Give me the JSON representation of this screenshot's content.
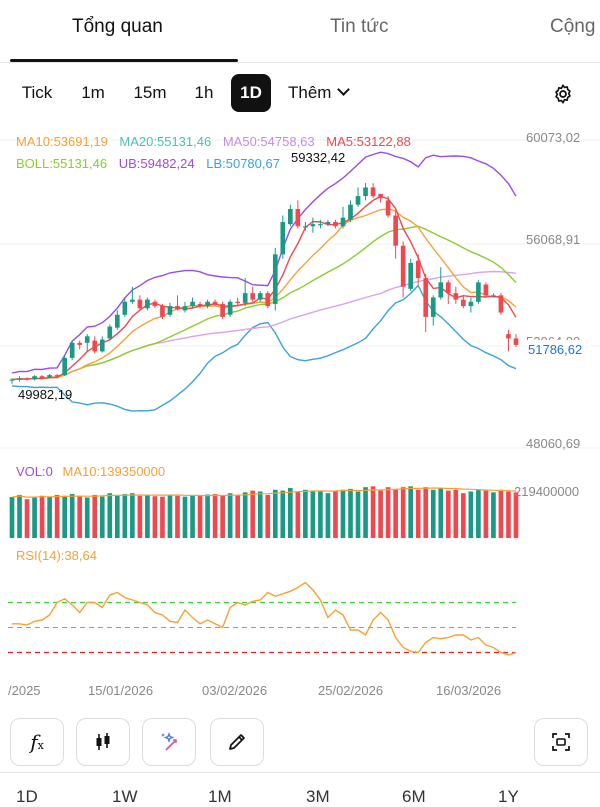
{
  "tabs": [
    "Tổng quan",
    "Tin tức",
    "Cộng"
  ],
  "timeframes": [
    "Tick",
    "1m",
    "15m",
    "1h",
    "1D"
  ],
  "more_label": "Thêm",
  "active_timeframe": "1D",
  "indicators": {
    "ma10": "MA10:53691,19",
    "ma20": "MA20:55131,46",
    "ma50": "MA50:54758,63",
    "ma5": "MA5:53122,88",
    "boll": "BOLL:55131,46",
    "ub": "UB:59482,24",
    "lb": "LB:50780,67"
  },
  "colors": {
    "up": "#1a9a84",
    "down": "#f0484f",
    "ma5": "#f0484f",
    "ma10": "#f5a234",
    "ma20": "#8dcc2c",
    "ma50": "#d8a3f0",
    "ub": "#9b4ae8",
    "lb": "#3aa3d8",
    "rsi": "#f5a234",
    "last_price": "#1a73e8"
  },
  "price_axis": [
    "60073,02",
    "56068,91",
    "52064,80",
    "48060,69"
  ],
  "last_price": "51786,62",
  "high_label": "59332,42",
  "low_label": "49982,19",
  "volume": {
    "title": "VOL:0",
    "ma10": "MA10:139350000",
    "axis_label": "219400000"
  },
  "rsi": {
    "title": "RSI(14):38,64"
  },
  "dates": [
    "/2025",
    "15/01/2026",
    "03/02/2026",
    "25/02/2026",
    "16/03/2026"
  ],
  "toolbar_icons": [
    "fx-icon",
    "candlestick-icon",
    "magic-icon",
    "pencil-icon",
    "screenshot-icon"
  ],
  "ranges": [
    "1D",
    "1W",
    "1M",
    "3M",
    "6M",
    "1Y"
  ],
  "chart_data": {
    "type": "candlestick",
    "ylim": [
      47000,
      61000
    ],
    "candles": [
      [
        49850,
        49900,
        49700,
        49950
      ],
      [
        49900,
        49950,
        49800,
        50050
      ],
      [
        49950,
        49900,
        49850,
        50000
      ],
      [
        49900,
        50050,
        49850,
        50100
      ],
      [
        50050,
        49950,
        49900,
        50100
      ],
      [
        50000,
        50100,
        49950,
        50150
      ],
      [
        50100,
        50050,
        49950,
        50150
      ],
      [
        50100,
        50900,
        50050,
        51000
      ],
      [
        50900,
        51600,
        50800,
        51700
      ],
      [
        51600,
        51500,
        51300,
        51700
      ],
      [
        51600,
        51900,
        51200,
        52000
      ],
      [
        51700,
        51200,
        51100,
        51900
      ],
      [
        51200,
        51750,
        51150,
        51900
      ],
      [
        51800,
        52350,
        51700,
        52450
      ],
      [
        52300,
        52900,
        52200,
        53100
      ],
      [
        52900,
        53500,
        52800,
        53700
      ],
      [
        53500,
        53600,
        53400,
        54200
      ],
      [
        53600,
        53200,
        53100,
        53800
      ],
      [
        53200,
        53600,
        53100,
        53700
      ],
      [
        53500,
        53300,
        53200,
        53600
      ],
      [
        53300,
        52800,
        52700,
        53400
      ],
      [
        52900,
        53300,
        52800,
        53450
      ],
      [
        53300,
        53150,
        53100,
        53800
      ],
      [
        53100,
        53300,
        53000,
        53500
      ],
      [
        53300,
        53500,
        53200,
        53700
      ],
      [
        53400,
        53300,
        53200,
        53500
      ],
      [
        53300,
        53500,
        53200,
        53600
      ],
      [
        53500,
        53400,
        53300,
        53600
      ],
      [
        53400,
        52800,
        52700,
        53500
      ],
      [
        52900,
        53500,
        52800,
        53600
      ],
      [
        53500,
        53450,
        53300,
        53700
      ],
      [
        53450,
        53900,
        53300,
        54600
      ],
      [
        53900,
        53600,
        53500,
        54200
      ],
      [
        53600,
        53900,
        53500,
        54000
      ],
      [
        53900,
        53300,
        53200,
        54000
      ],
      [
        53400,
        55700,
        53100,
        56000
      ],
      [
        55700,
        57200,
        55500,
        57500
      ],
      [
        57100,
        57800,
        57000,
        58000
      ],
      [
        57800,
        57000,
        56900,
        58200
      ],
      [
        57000,
        57000,
        56800,
        57200
      ],
      [
        57000,
        57100,
        56700,
        57400
      ],
      [
        57100,
        57100,
        56900,
        57300
      ],
      [
        57100,
        57200,
        57000,
        57300
      ],
      [
        57200,
        57000,
        56900,
        57300
      ],
      [
        57000,
        57400,
        56900,
        57900
      ],
      [
        57300,
        58000,
        57200,
        58200
      ],
      [
        58000,
        58400,
        57900,
        58800
      ],
      [
        58400,
        58800,
        58200,
        59000
      ],
      [
        58800,
        58400,
        58300,
        59000
      ],
      [
        58500,
        58300,
        58100,
        58500
      ],
      [
        58200,
        57500,
        57400,
        58400
      ],
      [
        57500,
        56100,
        55500,
        57700
      ],
      [
        56100,
        54200,
        53700,
        56300
      ],
      [
        54100,
        55300,
        54000,
        55500
      ],
      [
        55400,
        54600,
        54300,
        55700
      ],
      [
        54600,
        52800,
        52100,
        54800
      ],
      [
        52800,
        53700,
        52400,
        53800
      ],
      [
        53700,
        54400,
        53600,
        55100
      ],
      [
        54400,
        53900,
        53400,
        54500
      ],
      [
        53900,
        53600,
        53400,
        54200
      ],
      [
        53600,
        53300,
        53200,
        53800
      ],
      [
        53300,
        53500,
        53000,
        53700
      ],
      [
        53500,
        54400,
        53400,
        54500
      ],
      [
        54300,
        53800,
        53700,
        54400
      ],
      [
        53800,
        53800,
        53700,
        53900
      ],
      [
        53800,
        53000,
        52900,
        53900
      ],
      [
        52000,
        51800,
        51200,
        52200
      ],
      [
        51800,
        51500,
        51400,
        52000
      ]
    ],
    "volumes": [
      95,
      100,
      90,
      95,
      98,
      96,
      100,
      98,
      102,
      98,
      94,
      100,
      96,
      104,
      100,
      102,
      104,
      98,
      100,
      97,
      96,
      100,
      98,
      96,
      98,
      100,
      101,
      102,
      98,
      104,
      100,
      106,
      110,
      108,
      100,
      112,
      110,
      116,
      108,
      112,
      108,
      110,
      104,
      110,
      112,
      114,
      108,
      118,
      120,
      110,
      118,
      114,
      118,
      120,
      112,
      118,
      112,
      116,
      110,
      112,
      104,
      108,
      112,
      110,
      106,
      112,
      108,
      106
    ],
    "rsi": [
      53,
      53,
      52,
      55,
      56,
      60,
      70,
      73,
      68,
      62,
      70,
      70,
      66,
      76,
      78,
      74,
      72,
      70,
      68,
      62,
      60,
      55,
      54,
      64,
      58,
      53,
      56,
      53,
      50,
      66,
      70,
      68,
      71,
      72,
      78,
      75,
      77,
      79,
      82,
      86,
      80,
      72,
      58,
      64,
      60,
      48,
      48,
      44,
      56,
      62,
      56,
      42,
      34,
      31,
      30,
      38,
      42,
      41,
      42,
      44,
      44,
      40,
      42,
      36,
      34,
      30,
      28,
      30
    ],
    "overbought": 70,
    "oversold": 30
  }
}
